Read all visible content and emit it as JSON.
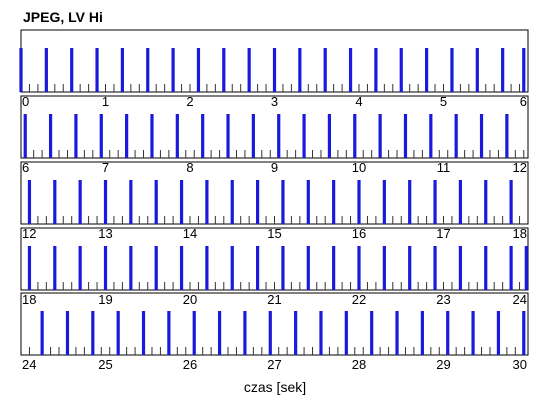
{
  "chart_data": {
    "type": "bar",
    "title": "JPEG, LV Hi",
    "xlabel": "czas [sek]",
    "ylabel": "",
    "grid": false,
    "legend": "none",
    "colors": {
      "tall_bar": "#1a1adc",
      "small_tick": "#333333",
      "frame": "#000000"
    },
    "frame_period_s": 0.3,
    "rows": [
      {
        "x_range": [
          0,
          6
        ],
        "tick_labels": [
          "0",
          "1",
          "2",
          "3",
          "4",
          "5",
          "6"
        ],
        "tall_bars": [
          0.0,
          0.3,
          0.6,
          0.9,
          1.2,
          1.5,
          1.8,
          2.1,
          2.4,
          2.7,
          3.0,
          3.3,
          3.6,
          3.9,
          4.2,
          4.5,
          4.8,
          5.1,
          5.4,
          5.7,
          5.95
        ],
        "small_ticks": [
          0.1,
          0.2,
          0.4,
          0.5,
          0.7,
          0.8,
          1.0,
          1.1,
          1.3,
          1.4,
          1.6,
          1.7,
          1.9,
          2.0,
          2.2,
          2.3,
          2.5,
          2.6,
          2.8,
          2.9,
          3.1,
          3.2,
          3.4,
          3.5,
          3.7,
          3.8,
          4.0,
          4.1,
          4.3,
          4.4,
          4.6,
          4.7,
          4.9,
          5.0,
          5.2,
          5.3,
          5.5,
          5.6,
          5.8,
          5.9
        ]
      },
      {
        "x_range": [
          6,
          12
        ],
        "tick_labels": [
          "6",
          "7",
          "8",
          "9",
          "10",
          "11",
          "12"
        ],
        "tall_bars": [
          6.05,
          6.35,
          6.65,
          6.95,
          7.25,
          7.55,
          7.85,
          8.15,
          8.45,
          8.75,
          9.05,
          9.35,
          9.65,
          9.95,
          10.25,
          10.55,
          10.85,
          11.15,
          11.45,
          11.75
        ],
        "small_ticks": [
          6.15,
          6.25,
          6.45,
          6.55,
          6.75,
          6.85,
          7.05,
          7.15,
          7.35,
          7.45,
          7.65,
          7.75,
          7.95,
          8.05,
          8.25,
          8.35,
          8.55,
          8.65,
          8.85,
          8.95,
          9.15,
          9.25,
          9.45,
          9.55,
          9.75,
          9.85,
          10.05,
          10.15,
          10.35,
          10.45,
          10.65,
          10.75,
          10.95,
          11.05,
          11.25,
          11.35,
          11.55,
          11.65,
          11.85,
          11.95
        ]
      },
      {
        "x_range": [
          12,
          18
        ],
        "tick_labels": [
          "12",
          "13",
          "14",
          "15",
          "16",
          "17",
          "18"
        ],
        "tall_bars": [
          12.1,
          12.4,
          12.7,
          13.0,
          13.3,
          13.6,
          13.9,
          14.2,
          14.5,
          14.8,
          15.1,
          15.4,
          15.7,
          16.0,
          16.3,
          16.6,
          16.9,
          17.2,
          17.5,
          17.8
        ],
        "small_ticks": [
          12.2,
          12.3,
          12.5,
          12.6,
          12.8,
          12.9,
          13.1,
          13.2,
          13.4,
          13.5,
          13.7,
          13.8,
          14.0,
          14.1,
          14.3,
          14.4,
          14.6,
          14.7,
          14.9,
          15.0,
          15.2,
          15.3,
          15.5,
          15.6,
          15.8,
          15.9,
          16.1,
          16.2,
          16.4,
          16.5,
          16.7,
          16.8,
          17.0,
          17.1,
          17.3,
          17.4,
          17.6,
          17.7,
          17.9
        ]
      },
      {
        "x_range": [
          18,
          24
        ],
        "tick_labels": [
          "18",
          "19",
          "20",
          "21",
          "22",
          "23",
          "24"
        ],
        "tall_bars": [
          18.1,
          18.4,
          18.7,
          19.0,
          19.3,
          19.6,
          19.9,
          20.2,
          20.5,
          20.8,
          21.1,
          21.4,
          21.7,
          22.0,
          22.3,
          22.6,
          22.9,
          23.2,
          23.5,
          23.8,
          23.98
        ],
        "small_ticks": [
          18.2,
          18.3,
          18.5,
          18.6,
          18.8,
          18.9,
          19.1,
          19.2,
          19.4,
          19.5,
          19.7,
          19.8,
          20.0,
          20.1,
          20.3,
          20.4,
          20.6,
          20.7,
          20.9,
          21.0,
          21.2,
          21.3,
          21.5,
          21.6,
          21.8,
          21.9,
          22.1,
          22.2,
          22.4,
          22.5,
          22.7,
          22.8,
          23.0,
          23.1,
          23.3,
          23.4,
          23.6,
          23.7,
          23.9
        ]
      },
      {
        "x_range": [
          24,
          30
        ],
        "tick_labels": [
          "24",
          "25",
          "26",
          "27",
          "28",
          "29",
          "30"
        ],
        "tall_bars": [
          24.25,
          24.55,
          24.85,
          25.15,
          25.45,
          25.75,
          26.05,
          26.35,
          26.65,
          26.95,
          27.25,
          27.55,
          27.85,
          28.15,
          28.45,
          28.75,
          29.05,
          29.35,
          29.65,
          29.95
        ],
        "small_ticks": [
          24.1,
          24.35,
          24.45,
          24.65,
          24.75,
          24.95,
          25.05,
          25.25,
          25.35,
          25.55,
          25.65,
          25.85,
          25.95,
          26.15,
          26.25,
          26.45,
          26.55,
          26.75,
          26.85,
          27.05,
          27.15,
          27.35,
          27.45,
          27.65,
          27.75,
          27.95,
          28.05,
          28.25,
          28.35,
          28.55,
          28.65,
          28.85,
          28.95,
          29.15,
          29.25,
          29.45,
          29.55,
          29.75,
          29.85
        ]
      }
    ]
  }
}
